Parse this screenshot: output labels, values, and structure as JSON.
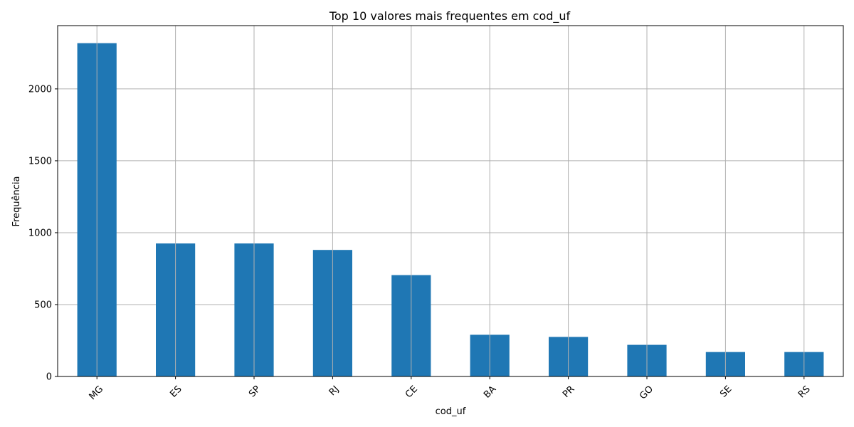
{
  "chart_data": {
    "type": "bar",
    "title": "Top 10 valores mais frequentes em cod_uf",
    "xlabel": "cod_uf",
    "ylabel": "Frequência",
    "categories": [
      "MG",
      "ES",
      "SP",
      "RJ",
      "CE",
      "BA",
      "PR",
      "GO",
      "SE",
      "RS"
    ],
    "values": [
      2318,
      925,
      925,
      880,
      705,
      290,
      275,
      220,
      170,
      170
    ],
    "ylim": [
      0,
      2440
    ],
    "yticks": [
      0,
      500,
      1000,
      1500,
      2000
    ],
    "grid": true,
    "legend": "none",
    "bar_color": "#1f77b4"
  }
}
